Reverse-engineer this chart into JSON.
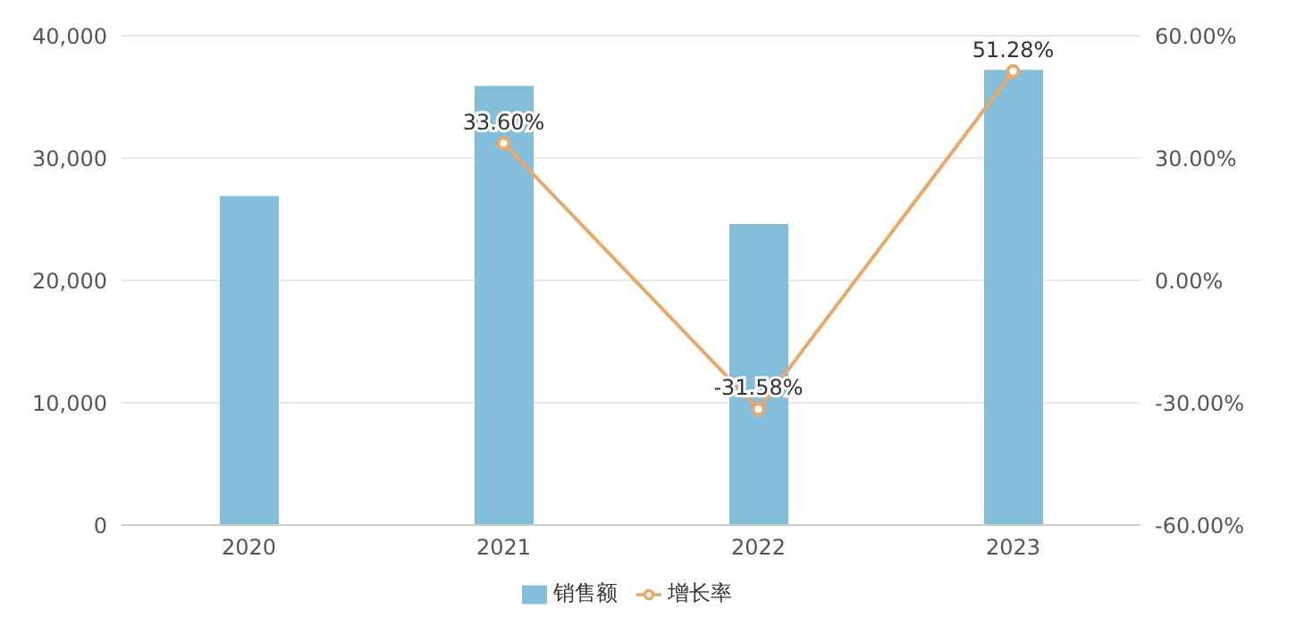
{
  "chart_data": {
    "type": "bar",
    "categories": [
      "2020",
      "2021",
      "2022",
      "2023"
    ],
    "series": [
      {
        "name": "销售额",
        "color": "#85bedb",
        "values": [
          26900,
          35900,
          24600,
          37200
        ]
      },
      {
        "name": "增长率",
        "type": "line",
        "axis": "y2",
        "color": "#e8a96a",
        "values": [
          null,
          33.6,
          -31.58,
          51.28
        ],
        "value_labels": [
          null,
          "33.60%",
          "-31.58%",
          "51.28%"
        ]
      }
    ],
    "ylim": [
      0,
      40000
    ],
    "yticks": [
      0,
      {
        "value": 10000,
        "label": "10,000"
      },
      {
        "value": 20000,
        "label": "20,000"
      },
      {
        "value": 30000,
        "label": "30,000"
      },
      {
        "value": 40000,
        "label": "40,000"
      }
    ],
    "y2lim": [
      -60,
      60
    ],
    "y2ticks": [
      {
        "value": -60,
        "label": "-60.00%"
      },
      {
        "value": -30,
        "label": "-30.00%"
      },
      {
        "value": 0,
        "label": "0.00%"
      },
      {
        "value": 30,
        "label": "30.00%"
      },
      {
        "value": 60,
        "label": "60.00%"
      }
    ],
    "grid": "y",
    "legend": "bottom",
    "marker": "circle"
  }
}
